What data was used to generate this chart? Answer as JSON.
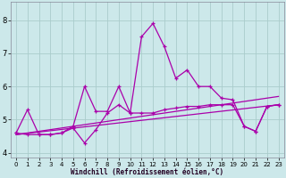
{
  "title": "",
  "xlabel": "Windchill (Refroidissement éolien,°C)",
  "bg_color": "#cce8ea",
  "grid_color": "#aacccc",
  "line_color": "#aa00aa",
  "xlim": [
    -0.5,
    23.5
  ],
  "ylim": [
    3.85,
    8.55
  ],
  "yticks": [
    4,
    5,
    6,
    7,
    8
  ],
  "xticks": [
    0,
    1,
    2,
    3,
    4,
    5,
    6,
    7,
    8,
    9,
    10,
    11,
    12,
    13,
    14,
    15,
    16,
    17,
    18,
    19,
    20,
    21,
    22,
    23
  ],
  "series1_x": [
    0,
    1,
    2,
    3,
    4,
    5,
    6,
    7,
    8,
    9,
    10,
    11,
    12,
    13,
    14,
    15,
    16,
    17,
    18,
    19,
    20,
    21,
    22,
    23
  ],
  "series1_y": [
    4.6,
    5.3,
    4.55,
    4.55,
    4.6,
    4.8,
    6.0,
    5.25,
    5.25,
    6.0,
    5.2,
    7.5,
    7.9,
    7.2,
    6.25,
    6.5,
    6.0,
    6.0,
    5.65,
    5.6,
    4.8,
    4.65,
    5.4,
    5.45
  ],
  "series2_x": [
    0,
    1,
    2,
    3,
    4,
    5,
    6,
    7,
    8,
    9,
    10,
    11,
    12,
    13,
    14,
    15,
    16,
    17,
    18,
    19,
    20,
    21,
    22,
    23
  ],
  "series2_y": [
    4.6,
    4.55,
    4.55,
    4.55,
    4.6,
    4.75,
    4.3,
    4.7,
    5.2,
    5.45,
    5.2,
    5.2,
    5.2,
    5.3,
    5.35,
    5.4,
    5.4,
    5.45,
    5.45,
    5.45,
    4.8,
    4.65,
    5.4,
    5.45
  ],
  "trend1_x": [
    0,
    23
  ],
  "trend1_y": [
    4.55,
    5.7
  ],
  "trend2_x": [
    0,
    23
  ],
  "trend2_y": [
    4.55,
    5.45
  ]
}
